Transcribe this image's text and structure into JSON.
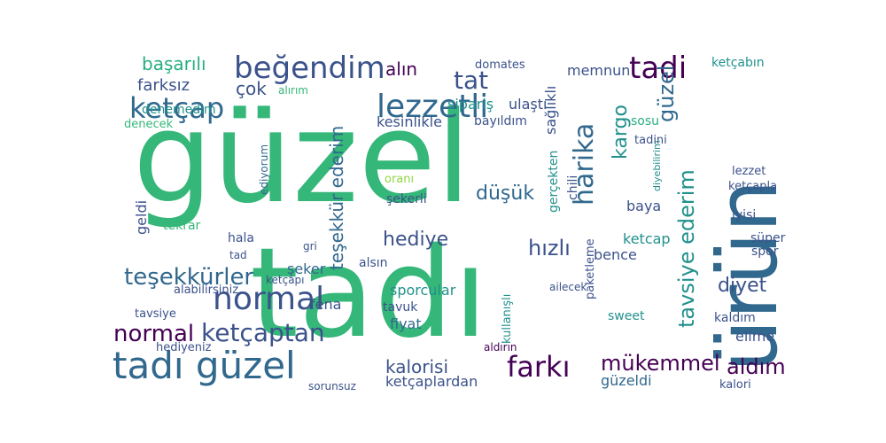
{
  "colors": {
    "background": "#ffffff",
    "dark_purple": "#440154",
    "indigo": "#3b528b",
    "blue": "#31688e",
    "teal": "#21918c",
    "green_teal": "#28ae80",
    "green": "#35b779",
    "lime": "#8fd744",
    "yellow_green": "#bddf26",
    "yellow": "#fde725"
  },
  "words": [
    {
      "text": "güzel",
      "color": "green"
    },
    {
      "text": "tadı",
      "color": "green"
    },
    {
      "text": "ürün",
      "color": "blue"
    },
    {
      "text": "lezzetli",
      "color": "blue"
    },
    {
      "text": "normal",
      "color": "indigo"
    },
    {
      "text": "beğendim",
      "color": "indigo"
    },
    {
      "text": "ketçap",
      "color": "blue"
    },
    {
      "text": "tadi",
      "color": "dark_purple"
    },
    {
      "text": "harika",
      "color": "blue"
    },
    {
      "text": "güzel",
      "color": "blue"
    },
    {
      "text": "tadı güzel",
      "color": "blue"
    },
    {
      "text": "ketçaptan",
      "color": "indigo"
    },
    {
      "text": "normal",
      "color": "dark_purple"
    },
    {
      "text": "teşekkürler",
      "color": "blue"
    },
    {
      "text": "farkı",
      "color": "dark_purple"
    },
    {
      "text": "mükemmel",
      "color": "dark_purple"
    },
    {
      "text": "tavsiye ederim",
      "color": "teal"
    },
    {
      "text": "teşekkür ederim",
      "color": "blue"
    },
    {
      "text": "tat",
      "color": "indigo"
    },
    {
      "text": "hızlı",
      "color": "indigo"
    },
    {
      "text": "başarılı",
      "color": "green_teal"
    },
    {
      "text": "kargo",
      "color": "teal"
    },
    {
      "text": "düşük",
      "color": "blue"
    },
    {
      "text": "hediye",
      "color": "indigo"
    },
    {
      "text": "aldım",
      "color": "dark_purple"
    },
    {
      "text": "diyet",
      "color": "indigo"
    },
    {
      "text": "kalorisi",
      "color": "indigo"
    },
    {
      "text": "farksız",
      "color": "indigo"
    },
    {
      "text": "çok",
      "color": "indigo"
    },
    {
      "text": "alın",
      "color": "dark_purple"
    },
    {
      "text": "memnun",
      "color": "indigo"
    },
    {
      "text": "ulaştı",
      "color": "indigo"
    },
    {
      "text": "sipariş",
      "color": "teal"
    },
    {
      "text": "domates",
      "color": "indigo"
    },
    {
      "text": "ketçabın",
      "color": "teal"
    },
    {
      "text": "bayıldım",
      "color": "indigo"
    },
    {
      "text": "kesinlikle",
      "color": "indigo"
    },
    {
      "text": "denemedim",
      "color": "teal"
    },
    {
      "text": "denecek",
      "color": "green"
    },
    {
      "text": "sağlıklı",
      "color": "indigo"
    },
    {
      "text": "gerçekten",
      "color": "teal"
    },
    {
      "text": "chili",
      "color": "indigo"
    },
    {
      "text": "baya",
      "color": "indigo"
    },
    {
      "text": "fena",
      "color": "indigo"
    },
    {
      "text": "güzeldi",
      "color": "blue"
    },
    {
      "text": "ketçaplardan",
      "color": "indigo"
    },
    {
      "text": "sporcular",
      "color": "teal"
    },
    {
      "text": "fiyat",
      "color": "blue"
    },
    {
      "text": "tavuk",
      "color": "indigo"
    },
    {
      "text": "ketcap",
      "color": "teal"
    },
    {
      "text": "bence",
      "color": "indigo"
    },
    {
      "text": "elime",
      "color": "indigo"
    },
    {
      "text": "kaldım",
      "color": "indigo"
    },
    {
      "text": "sweet",
      "color": "teal"
    },
    {
      "text": "şekerli",
      "color": "indigo"
    },
    {
      "text": "şeker",
      "color": "blue"
    },
    {
      "text": "tekrar",
      "color": "green"
    },
    {
      "text": "geldi",
      "color": "indigo"
    },
    {
      "text": "hala",
      "color": "indigo"
    },
    {
      "text": "tad",
      "color": "indigo"
    },
    {
      "text": "gri",
      "color": "indigo"
    },
    {
      "text": "alsın",
      "color": "indigo"
    },
    {
      "text": "hediyeniz",
      "color": "indigo"
    },
    {
      "text": "tavsiye",
      "color": "indigo"
    },
    {
      "text": "alabilirsiniz",
      "color": "indigo"
    },
    {
      "text": "ketçapı",
      "color": "indigo"
    },
    {
      "text": "kalori",
      "color": "indigo"
    },
    {
      "text": "sorunsuz",
      "color": "indigo"
    },
    {
      "text": "aldırın",
      "color": "dark_purple"
    },
    {
      "text": "kullanışlı",
      "color": "teal"
    },
    {
      "text": "paketleme",
      "color": "indigo"
    },
    {
      "text": "süper",
      "color": "indigo"
    },
    {
      "text": "spor",
      "color": "indigo"
    },
    {
      "text": "iyisi",
      "color": "indigo"
    },
    {
      "text": "lezzet",
      "color": "indigo"
    },
    {
      "text": "ketçapla",
      "color": "indigo"
    },
    {
      "text": "sosu",
      "color": "green_teal"
    },
    {
      "text": "tadini",
      "color": "indigo"
    },
    {
      "text": "diyebilirim",
      "color": "teal"
    },
    {
      "text": "alırım",
      "color": "green"
    },
    {
      "text": "ediyorum",
      "color": "blue"
    },
    {
      "text": "oranı",
      "color": "lime"
    },
    {
      "text": "ailecek",
      "color": "indigo"
    },
    {
      "text": "tadı",
      "color": "green"
    },
    {
      "text": "güzel",
      "color": "green"
    }
  ]
}
